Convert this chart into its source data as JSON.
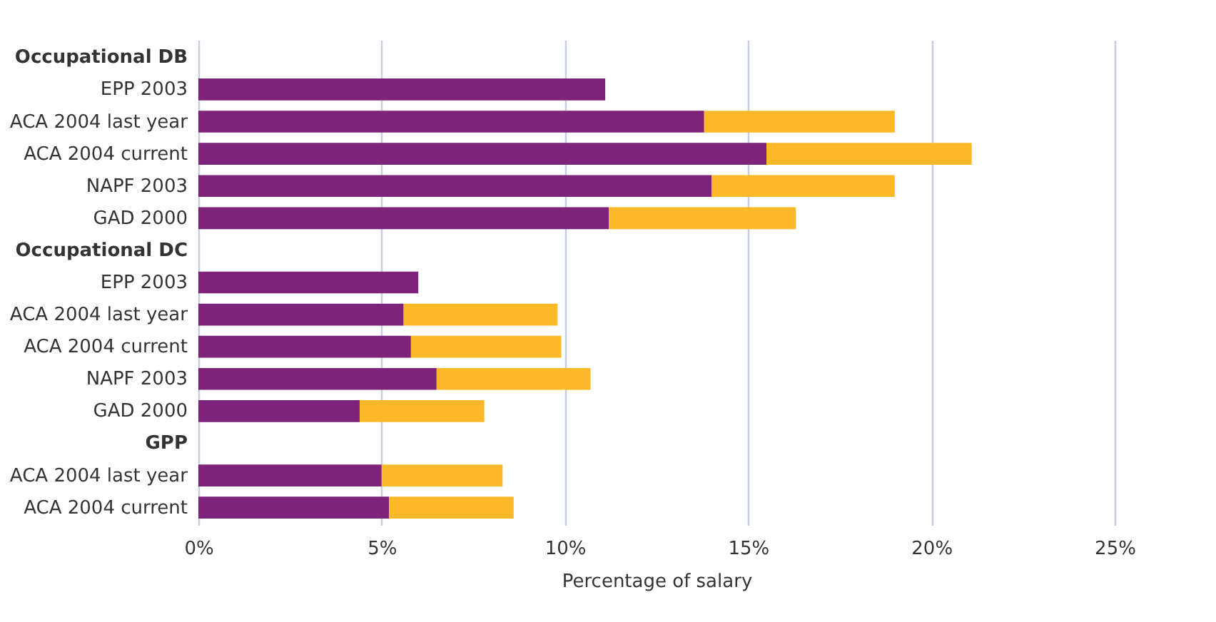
{
  "chart_data": {
    "type": "bar",
    "orientation": "horizontal",
    "stacked": true,
    "xlabel": "Percentage of salary",
    "categories": [
      "Occupational DB",
      "EPP 2003",
      "ACA 2004 last year",
      "ACA 2004 current",
      "NAPF 2003",
      "GAD 2000",
      "Occupational DC",
      "EPP 2003",
      "ACA 2004 last year",
      "ACA 2004 current",
      "NAPF 2003",
      "GAD 2000",
      "GPP",
      "ACA 2004 last year",
      "ACA 2004 current"
    ],
    "series": [
      {
        "color": "#7d237a",
        "values": [
          null,
          11.1,
          13.8,
          15.5,
          14.0,
          11.2,
          null,
          6.0,
          5.6,
          5.8,
          6.5,
          4.4,
          null,
          5.0,
          5.2
        ]
      },
      {
        "color": "#fbb829",
        "values": [
          null,
          null,
          5.2,
          5.6,
          5.0,
          5.1,
          null,
          null,
          4.2,
          4.1,
          4.2,
          3.4,
          null,
          3.3,
          3.4
        ]
      }
    ],
    "xlim": [
      0,
      25
    ],
    "xticks": [
      {
        "value": 0,
        "label": "0%"
      },
      {
        "value": 5,
        "label": "5%"
      },
      {
        "value": 10,
        "label": "10%"
      },
      {
        "value": 15,
        "label": "15%"
      },
      {
        "value": 20,
        "label": "20%"
      },
      {
        "value": 25,
        "label": "25%"
      }
    ],
    "grid": "x",
    "legend": false
  }
}
